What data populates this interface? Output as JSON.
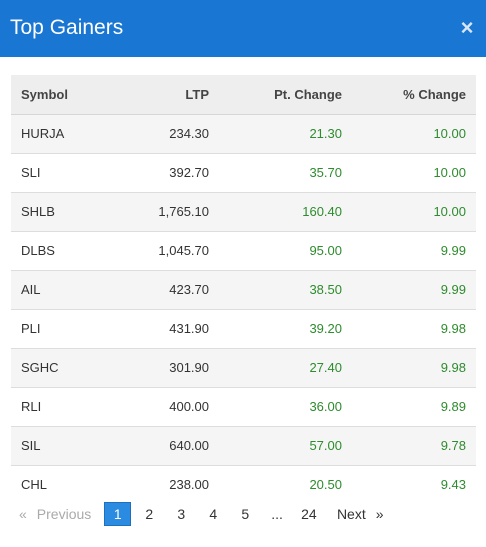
{
  "modal": {
    "title": "Top Gainers",
    "close_glyph": "×"
  },
  "table": {
    "headers": [
      "Symbol",
      "LTP",
      "Pt. Change",
      "% Change"
    ],
    "rows": [
      {
        "symbol": "HURJA",
        "ltp": "234.30",
        "pt_change": "21.30",
        "pct_change": "10.00"
      },
      {
        "symbol": "SLI",
        "ltp": "392.70",
        "pt_change": "35.70",
        "pct_change": "10.00"
      },
      {
        "symbol": "SHLB",
        "ltp": "1,765.10",
        "pt_change": "160.40",
        "pct_change": "10.00"
      },
      {
        "symbol": "DLBS",
        "ltp": "1,045.70",
        "pt_change": "95.00",
        "pct_change": "9.99"
      },
      {
        "symbol": "AIL",
        "ltp": "423.70",
        "pt_change": "38.50",
        "pct_change": "9.99"
      },
      {
        "symbol": "PLI",
        "ltp": "431.90",
        "pt_change": "39.20",
        "pct_change": "9.98"
      },
      {
        "symbol": "SGHC",
        "ltp": "301.90",
        "pt_change": "27.40",
        "pct_change": "9.98"
      },
      {
        "symbol": "RLI",
        "ltp": "400.00",
        "pt_change": "36.00",
        "pct_change": "9.89"
      },
      {
        "symbol": "SIL",
        "ltp": "640.00",
        "pt_change": "57.00",
        "pct_change": "9.78"
      },
      {
        "symbol": "CHL",
        "ltp": "238.00",
        "pt_change": "20.50",
        "pct_change": "9.43"
      }
    ]
  },
  "pagination": {
    "prev_arrow": "«",
    "prev_label": "Previous",
    "pages": [
      "1",
      "2",
      "3",
      "4",
      "5"
    ],
    "active_page": "1",
    "ellipsis": "...",
    "last_page": "24",
    "next_label": "Next",
    "next_arrow": "»"
  },
  "colors": {
    "header_bg": "#1976d2",
    "positive": "#2e8b2e",
    "active_page_bg": "#2b8be0"
  }
}
